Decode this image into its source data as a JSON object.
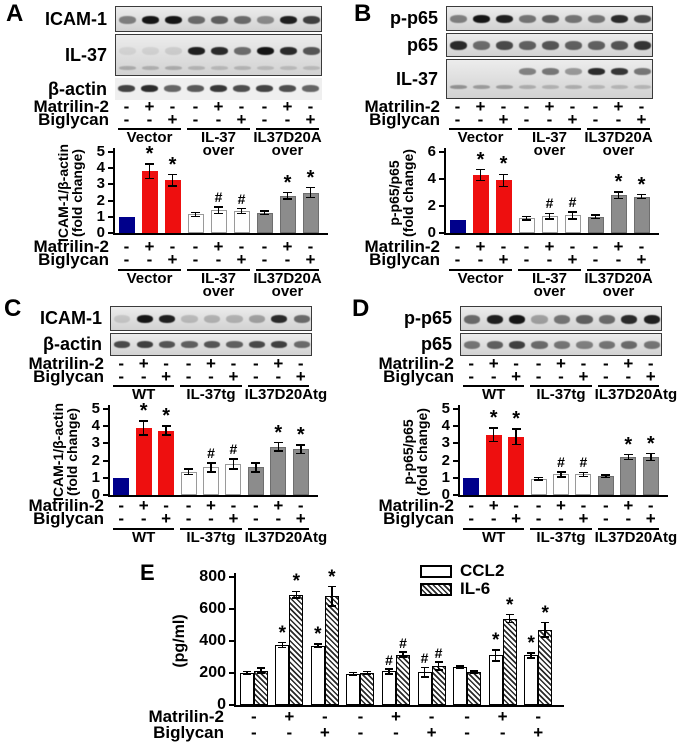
{
  "figure": {
    "background": "#ffffff"
  },
  "colors": {
    "navy": "#00008B",
    "red": "#EE0F0F",
    "white": "#FFFFFF",
    "gray": "#8C8C8C",
    "black": "#000000"
  },
  "symbols": {
    "significant": "*",
    "hash": "#",
    "plus": "+",
    "minus": "-"
  },
  "treatments": {
    "matrilin2_label": "Matrilin-2",
    "biglycan_label": "Biglycan",
    "matrilin2_signs": [
      "-",
      "+",
      "-",
      "-",
      "+",
      "-",
      "-",
      "+",
      "-"
    ],
    "biglycan_signs": [
      "-",
      "-",
      "+",
      "-",
      "-",
      "+",
      "-",
      "-",
      "+"
    ]
  },
  "panels": [
    {
      "id": "A",
      "label": "A",
      "groups": [
        [
          "Vector"
        ],
        [
          "IL-37",
          "over"
        ],
        [
          "IL37D20A",
          "over"
        ]
      ],
      "blots": [
        {
          "name": "ICAM-1",
          "framed": true,
          "h": 26,
          "rows": [
            {
              "top": 9,
              "bh": 8,
              "bands": [
                0.45,
                0.95,
                0.95,
                0.55,
                0.6,
                0.55,
                0.4,
                0.9,
                0.75
              ]
            }
          ]
        },
        {
          "name": "IL-37",
          "framed": true,
          "h": 42,
          "rows": [
            {
              "top": 12,
              "bh": 8,
              "bands": [
                0.07,
                0.08,
                0.1,
                0.9,
                0.85,
                0.55,
                0.95,
                0.85,
                0.65
              ]
            },
            {
              "top": 31,
              "bh": 4,
              "bands": [
                0.22,
                0.2,
                0.22,
                0.18,
                0.16,
                0.18,
                0.15,
                0.15,
                0.15
              ]
            }
          ]
        },
        {
          "name": "β-actin",
          "framed": false,
          "h": 22,
          "rows": [
            {
              "top": 7,
              "bh": 7,
              "bands": [
                0.75,
                0.85,
                0.6,
                0.65,
                0.8,
                0.7,
                0.75,
                0.7,
                0.6
              ]
            }
          ]
        }
      ]
    },
    {
      "id": "B",
      "label": "B",
      "groups": [
        [
          "Vector"
        ],
        [
          "IL-37",
          "over"
        ],
        [
          "IL37D20A",
          "over"
        ]
      ],
      "blots": [
        {
          "name": "p-p65",
          "framed": true,
          "h": 25,
          "rows": [
            {
              "top": 8,
              "bh": 8,
              "bands": [
                0.45,
                0.95,
                0.9,
                0.5,
                0.6,
                0.5,
                0.5,
                0.85,
                0.7
              ]
            }
          ]
        },
        {
          "name": "p65",
          "framed": true,
          "h": 24,
          "rows": [
            {
              "top": 7,
              "bh": 9,
              "bands": [
                0.85,
                0.55,
                0.7,
                0.6,
                0.65,
                0.6,
                0.6,
                0.65,
                0.8
              ]
            }
          ]
        },
        {
          "name": "IL-37",
          "framed": true,
          "h": 40,
          "rows": [
            {
              "top": 8,
              "bh": 7,
              "bands": [
                0,
                0,
                0,
                0.45,
                0.5,
                0.35,
                0.85,
                0.8,
                0.5
              ]
            },
            {
              "top": 25,
              "bh": 4,
              "bands": [
                0.35,
                0.3,
                0.3,
                0.22,
                0.2,
                0.22,
                0.18,
                0.18,
                0.18
              ]
            }
          ]
        }
      ]
    },
    {
      "id": "C",
      "label": "C",
      "groups": [
        [
          "WT"
        ],
        [
          "IL-37tg"
        ],
        [
          "IL37D20Atg"
        ]
      ],
      "blots": [
        {
          "name": "ICAM-1",
          "framed": true,
          "h": 25,
          "rows": [
            {
              "top": 8,
              "bh": 8,
              "bands": [
                0.12,
                0.95,
                0.9,
                0.18,
                0.22,
                0.22,
                0.3,
                0.85,
                0.55
              ]
            }
          ]
        },
        {
          "name": "β-actin",
          "framed": true,
          "h": 23,
          "rows": [
            {
              "top": 7,
              "bh": 7,
              "bands": [
                0.7,
                0.75,
                0.65,
                0.6,
                0.65,
                0.6,
                0.7,
                0.75,
                0.55
              ]
            }
          ]
        }
      ]
    },
    {
      "id": "D",
      "label": "D",
      "groups": [
        [
          "WT"
        ],
        [
          "IL-37tg"
        ],
        [
          "IL37D20Atg"
        ]
      ],
      "blots": [
        {
          "name": "p-p65",
          "framed": true,
          "h": 25,
          "rows": [
            {
              "top": 8,
              "bh": 9,
              "bands": [
                0.55,
                0.9,
                0.95,
                0.3,
                0.5,
                0.6,
                0.55,
                0.85,
                0.9
              ]
            }
          ]
        },
        {
          "name": "p65",
          "framed": true,
          "h": 23,
          "rows": [
            {
              "top": 7,
              "bh": 8,
              "bands": [
                0.5,
                0.6,
                0.75,
                0.55,
                0.5,
                0.45,
                0.5,
                0.55,
                0.5
              ]
            }
          ]
        }
      ]
    },
    {
      "id": "E",
      "label": "E"
    }
  ],
  "chart_data": [
    {
      "panel": "A",
      "type": "bar",
      "ylabel": "ICAM-1/β-actin (fold change)",
      "ylabel_lines": [
        "ICAM-1/β-actin",
        "(fold change)"
      ],
      "ylim": [
        0,
        5
      ],
      "yticks": [
        0,
        1,
        2,
        3,
        4,
        5
      ],
      "grid": false,
      "categories": [
        "Vector: -/-",
        "Vector: +Matrilin-2",
        "Vector: +Biglycan",
        "IL-37 over: -/-",
        "IL-37 over: +Matrilin-2",
        "IL-37 over: +Biglycan",
        "IL37D20A over: -/-",
        "IL37D20A over: +Matrilin-2",
        "IL37D20A over: +Biglycan"
      ],
      "values": [
        1.0,
        3.8,
        3.25,
        1.15,
        1.4,
        1.35,
        1.25,
        2.3,
        2.5
      ],
      "errors": [
        0,
        0.45,
        0.35,
        0.12,
        0.2,
        0.15,
        0.1,
        0.2,
        0.3
      ],
      "annotations": [
        "",
        "*",
        "*",
        "",
        "#",
        "#",
        "",
        "*",
        "*"
      ],
      "bar_colors": [
        "navy",
        "red",
        "red",
        "white",
        "white",
        "white",
        "gray",
        "gray",
        "gray"
      ]
    },
    {
      "panel": "B",
      "type": "bar",
      "ylabel": "p-p65/p65 (fold change)",
      "ylabel_lines": [
        "p-p65/p65",
        "(fold change)"
      ],
      "ylim": [
        0,
        6
      ],
      "yticks": [
        0,
        2,
        4,
        6
      ],
      "grid": false,
      "categories": [
        "Vector: -/-",
        "Vector: +Matrilin-2",
        "Vector: +Biglycan",
        "IL-37 over: -/-",
        "IL-37 over: +Matrilin-2",
        "IL-37 over: +Biglycan",
        "IL37D20A over: -/-",
        "IL37D20A over: +Matrilin-2",
        "IL37D20A over: +Biglycan"
      ],
      "values": [
        1.0,
        4.3,
        3.9,
        1.1,
        1.25,
        1.3,
        1.2,
        2.8,
        2.7
      ],
      "errors": [
        0,
        0.4,
        0.45,
        0.12,
        0.2,
        0.25,
        0.12,
        0.25,
        0.15
      ],
      "annotations": [
        "",
        "*",
        "*",
        "",
        "#",
        "#",
        "",
        "*",
        "*"
      ],
      "bar_colors": [
        "navy",
        "red",
        "red",
        "white",
        "white",
        "white",
        "gray",
        "gray",
        "gray"
      ]
    },
    {
      "panel": "C",
      "type": "bar",
      "ylabel": "ICAM-1/β-actin (fold change)",
      "ylabel_lines": [
        "ICAM-1/β-actin",
        "(fold change)"
      ],
      "ylim": [
        0,
        5
      ],
      "yticks": [
        0,
        1,
        2,
        3,
        4,
        5
      ],
      "grid": false,
      "categories": [
        "WT: -/-",
        "WT: +Matrilin-2",
        "WT: +Biglycan",
        "IL-37tg: -/-",
        "IL-37tg: +Matrilin-2",
        "IL-37tg: +Biglycan",
        "IL37D20Atg: -/-",
        "IL37D20Atg: +Matrilin-2",
        "IL37D20Atg: +Biglycan"
      ],
      "values": [
        1.0,
        3.9,
        3.75,
        1.35,
        1.6,
        1.8,
        1.6,
        2.8,
        2.65
      ],
      "errors": [
        0,
        0.4,
        0.25,
        0.15,
        0.25,
        0.3,
        0.25,
        0.25,
        0.25
      ],
      "annotations": [
        "",
        "*",
        "*",
        "",
        "#",
        "#",
        "",
        "*",
        "*"
      ],
      "bar_colors": [
        "navy",
        "red",
        "red",
        "white",
        "white",
        "white",
        "gray",
        "gray",
        "gray"
      ]
    },
    {
      "panel": "D",
      "type": "bar",
      "ylabel": "p-p65/p65 (fold change)",
      "ylabel_lines": [
        "p-p65/p65",
        "(fold change)"
      ],
      "ylim": [
        0,
        5
      ],
      "yticks": [
        0,
        1,
        2,
        3,
        4,
        5
      ],
      "grid": false,
      "categories": [
        "WT: -/-",
        "WT: +Matrilin-2",
        "WT: +Biglycan",
        "IL-37tg: -/-",
        "IL-37tg: +Matrilin-2",
        "IL-37tg: +Biglycan",
        "IL37D20Atg: -/-",
        "IL37D20Atg: +Matrilin-2",
        "IL37D20Atg: +Biglycan"
      ],
      "values": [
        1.0,
        3.5,
        3.4,
        0.95,
        1.2,
        1.2,
        1.1,
        2.2,
        2.2
      ],
      "errors": [
        0,
        0.4,
        0.45,
        0.07,
        0.15,
        0.12,
        0.07,
        0.15,
        0.2
      ],
      "annotations": [
        "",
        "*",
        "*",
        "",
        "#",
        "#",
        "",
        "*",
        "*"
      ],
      "bar_colors": [
        "navy",
        "red",
        "red",
        "white",
        "white",
        "white",
        "gray",
        "gray",
        "gray"
      ]
    },
    {
      "panel": "E",
      "type": "grouped-bar",
      "ylabel": "(pg/ml)",
      "ylim": [
        0,
        800
      ],
      "yticks": [
        0,
        200,
        400,
        600,
        800
      ],
      "grid": false,
      "legend": [
        "CCL2",
        "IL-6"
      ],
      "legend_position": "top-right",
      "categories": [
        "-/-",
        "+Matrilin-2",
        "+Biglycan",
        "-/-",
        "+Matrilin-2",
        "+Biglycan",
        "-/-",
        "+Matrilin-2",
        "+Biglycan"
      ],
      "series": [
        {
          "name": "CCL2",
          "style": "white",
          "values": [
            200,
            375,
            370,
            195,
            210,
            205,
            235,
            310,
            310
          ],
          "errors": [
            10,
            15,
            12,
            8,
            15,
            30,
            8,
            35,
            15
          ],
          "annotations": [
            "",
            "*",
            "*",
            "",
            "#",
            "#",
            "",
            "*",
            "*"
          ]
        },
        {
          "name": "IL-6",
          "style": "hatched",
          "values": [
            215,
            690,
            680,
            200,
            315,
            245,
            205,
            540,
            470
          ],
          "errors": [
            15,
            20,
            60,
            10,
            15,
            25,
            8,
            25,
            45
          ],
          "annotations": [
            "",
            "*",
            "*",
            "",
            "#",
            "#",
            "",
            "*",
            "*"
          ]
        }
      ]
    }
  ]
}
